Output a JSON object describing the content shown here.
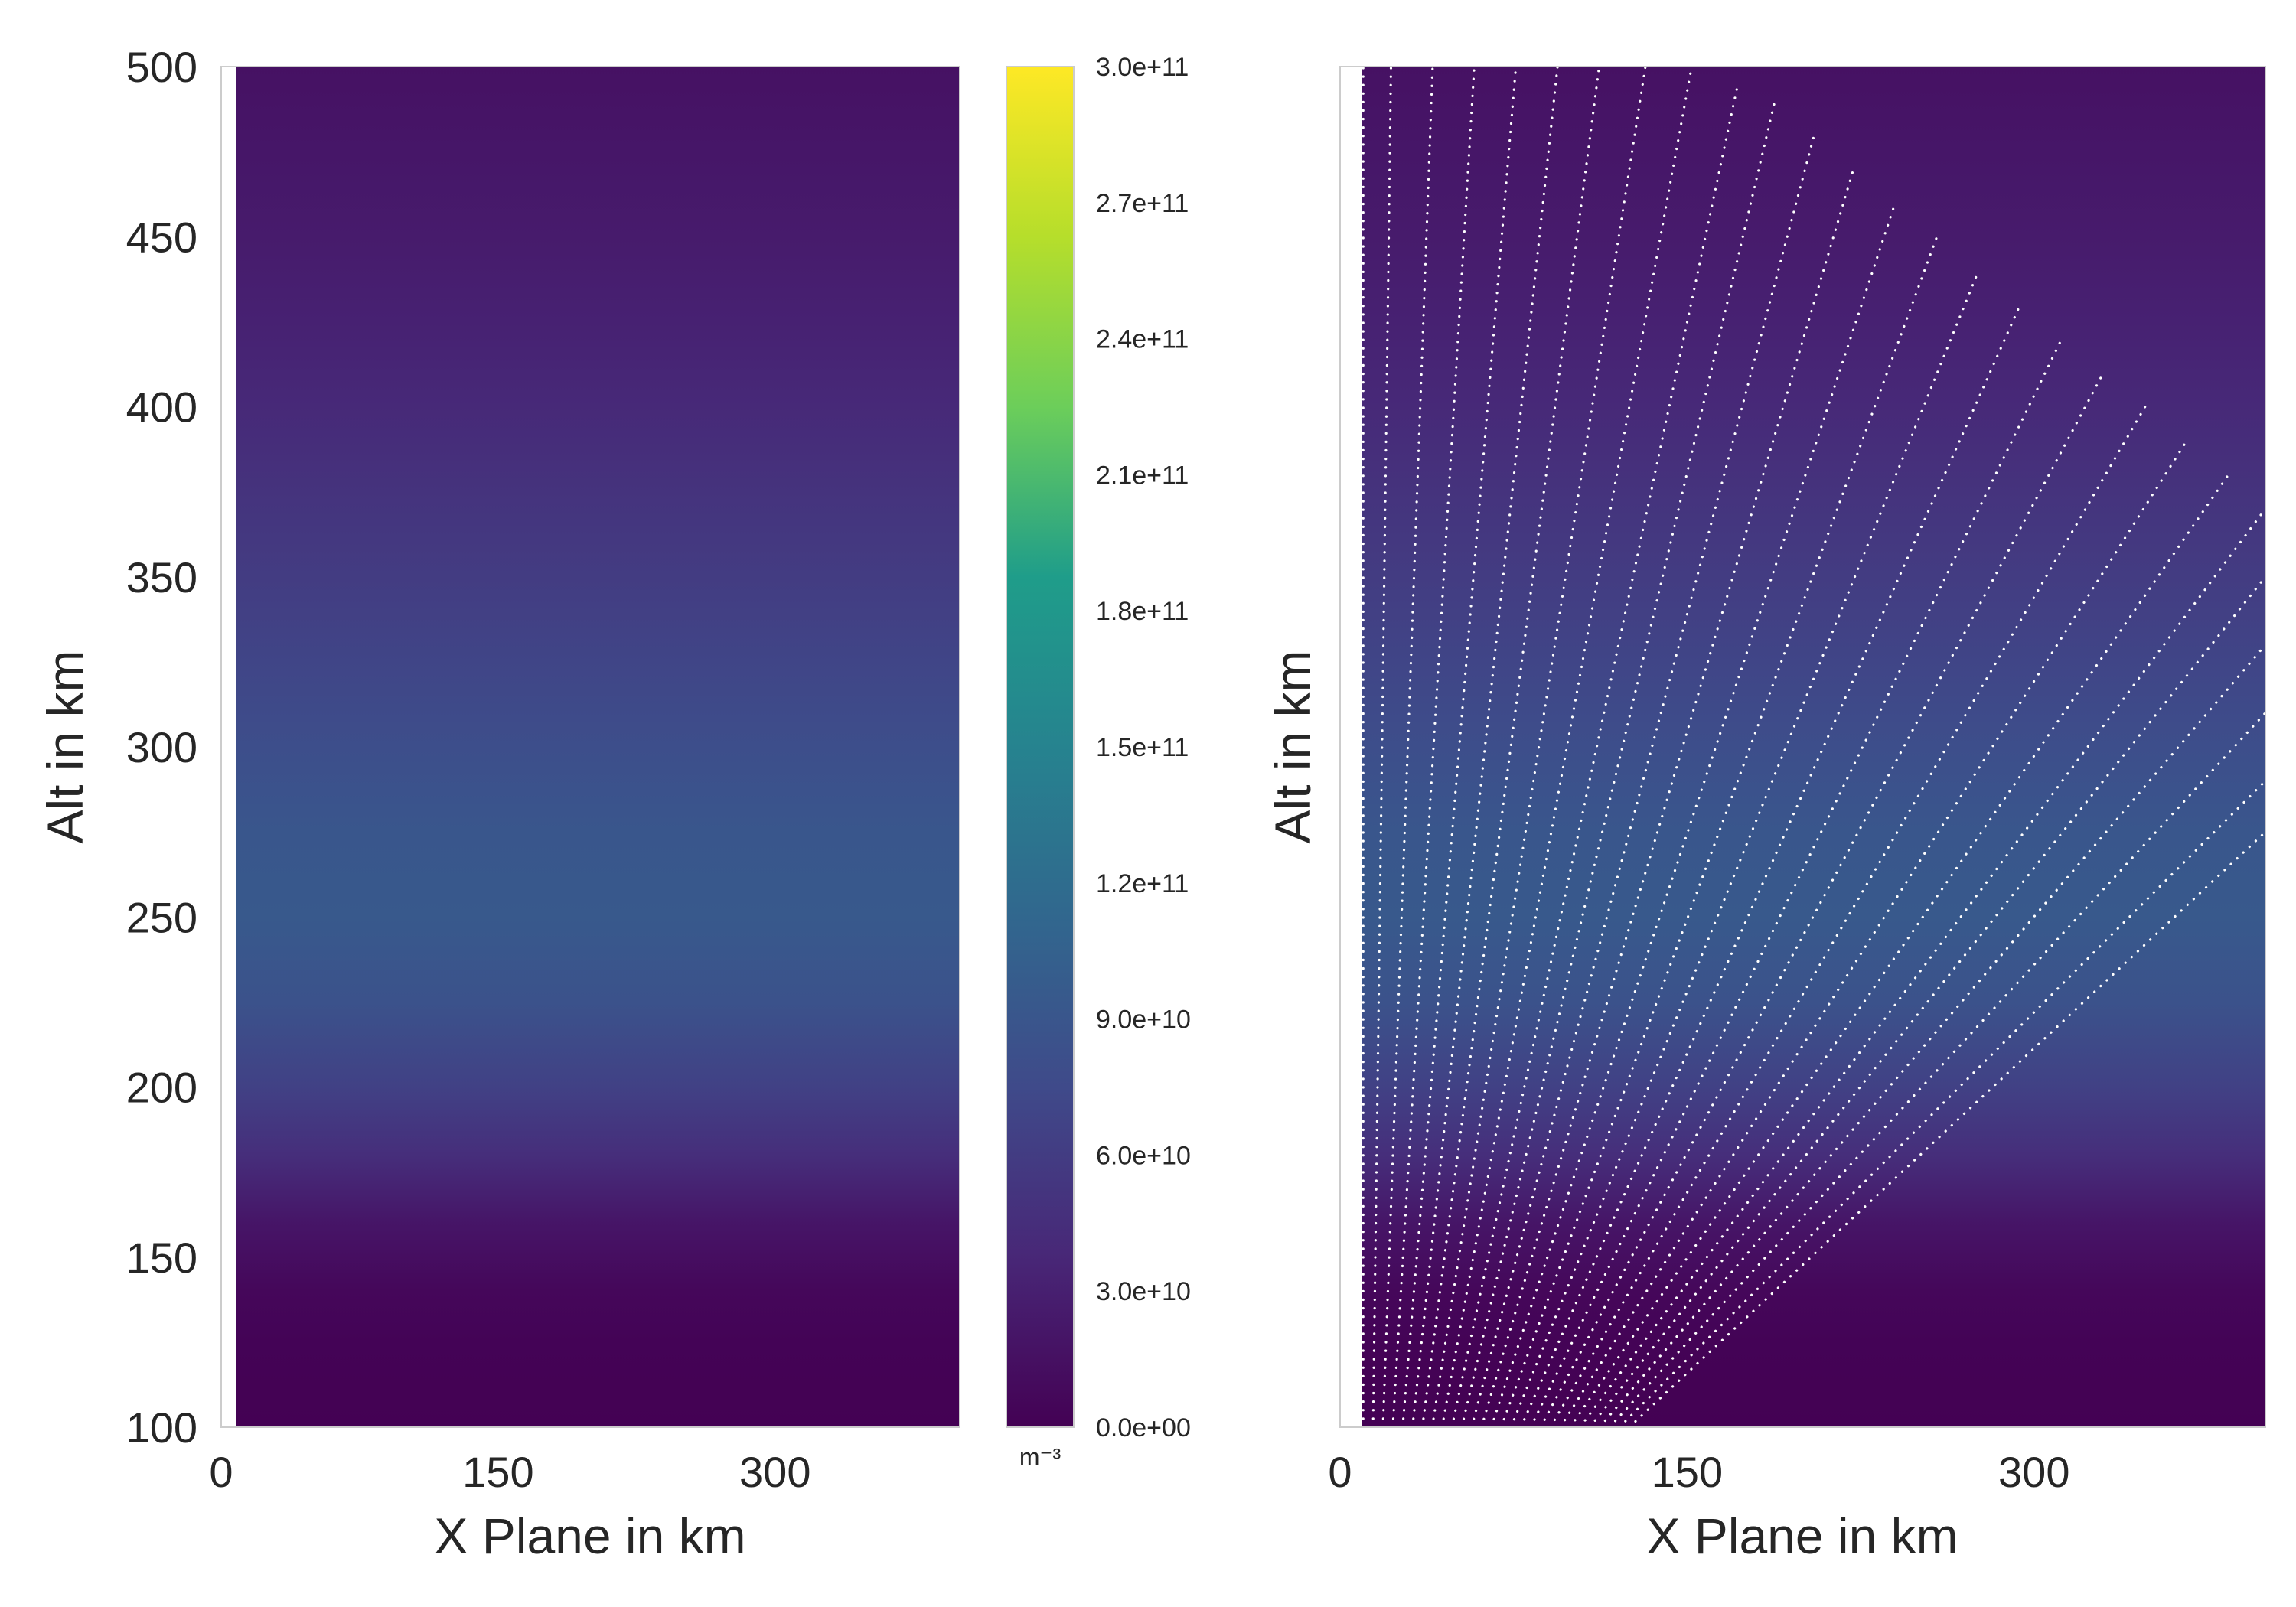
{
  "chart_data": [
    {
      "type": "heatmap",
      "panel": "left",
      "xlabel": "X Plane in km",
      "ylabel": "Alt in km",
      "xlim": [
        0,
        400
      ],
      "ylim": [
        100,
        500
      ],
      "xticks": [
        "0",
        "150",
        "300"
      ],
      "yticks": [
        "100",
        "150",
        "200",
        "250",
        "300",
        "350",
        "400",
        "450",
        "500"
      ],
      "grid": false,
      "colormap": "viridis",
      "field": "electron density, uniform along x, varying with altitude",
      "profile": {
        "alt_km": [
          100,
          110,
          125,
          140,
          160,
          180,
          200,
          225,
          250,
          275,
          300,
          325,
          350,
          375,
          400,
          425,
          450,
          475,
          500
        ],
        "density_m3": [
          0,
          500000000,
          2000000000,
          6000000000,
          20000000000,
          45000000000,
          65000000000,
          85000000000,
          95000000000,
          90000000000,
          80000000000,
          70000000000,
          60000000000,
          50000000000,
          40000000000,
          32000000000,
          26000000000,
          21000000000,
          16000000000
        ]
      }
    },
    {
      "type": "scatter",
      "panel": "right",
      "xlabel": "X Plane in km",
      "ylabel": "Alt in km",
      "xlim": [
        0,
        400
      ],
      "ylim": [
        100,
        500
      ],
      "xticks": [
        "0",
        "150",
        "300"
      ],
      "grid": false,
      "marker_color": "#ffffff",
      "background": "same electron density field as left panel",
      "rays": {
        "count": 28,
        "start_x_km": [
          10,
          125
        ],
        "start_alt_km": 100,
        "end_points": [
          [
            10,
            500
          ],
          [
            22,
            500
          ],
          [
            40,
            500
          ],
          [
            58,
            500
          ],
          [
            76,
            500
          ],
          [
            94,
            500
          ],
          [
            112,
            500
          ],
          [
            132,
            500
          ],
          [
            152,
            500
          ],
          [
            172,
            495
          ],
          [
            188,
            490
          ],
          [
            205,
            480
          ],
          [
            222,
            470
          ],
          [
            240,
            460
          ],
          [
            258,
            450
          ],
          [
            276,
            440
          ],
          [
            294,
            430
          ],
          [
            312,
            420
          ],
          [
            330,
            410
          ],
          [
            348,
            400
          ],
          [
            366,
            390
          ],
          [
            384,
            380
          ],
          [
            400,
            370
          ],
          [
            400,
            350
          ],
          [
            400,
            330
          ],
          [
            400,
            310
          ],
          [
            400,
            290
          ],
          [
            400,
            275
          ]
        ]
      }
    }
  ],
  "colorbar": {
    "min": 0,
    "max": 300000000000,
    "ticks": [
      "0.0e+00",
      "3.0e+10",
      "6.0e+10",
      "9.0e+10",
      "1.2e+11",
      "1.5e+11",
      "1.8e+11",
      "2.1e+11",
      "2.4e+11",
      "2.7e+11",
      "3.0e+11"
    ],
    "unit": "m⁻³"
  },
  "colors": {
    "viridis_stops": [
      "#440154",
      "#482777",
      "#3f4a8a",
      "#31678e",
      "#26838f",
      "#1f9d8a",
      "#6cce5a",
      "#b6de2b",
      "#fee825"
    ],
    "frame": "#cccccc",
    "text": "#262626"
  }
}
